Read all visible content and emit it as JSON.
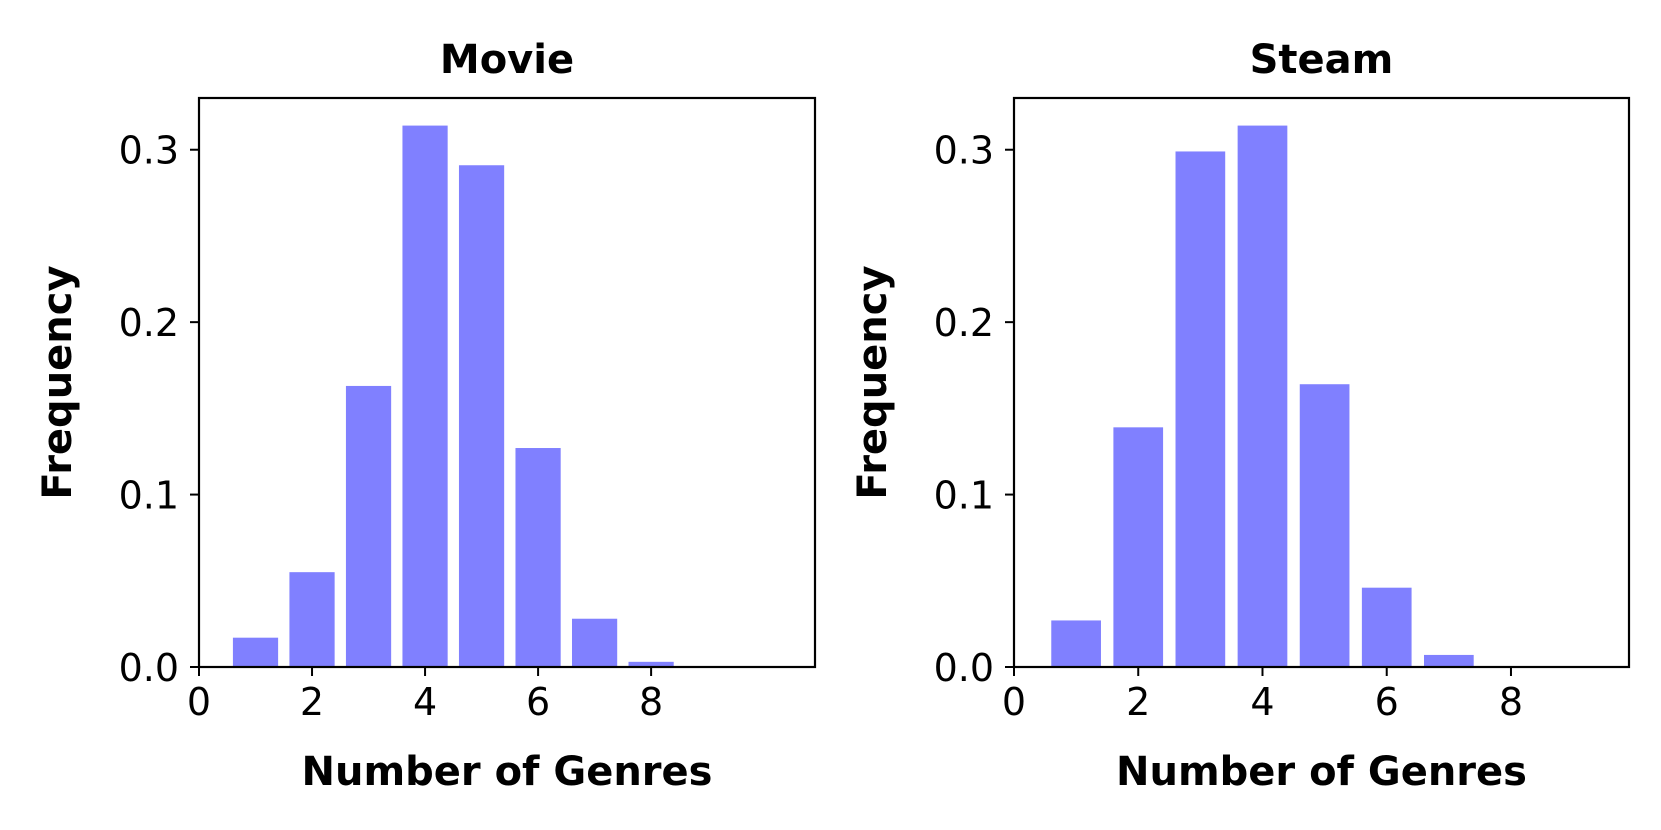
{
  "chart_data": [
    {
      "type": "bar",
      "title": "Movie",
      "xlabel": "Number of Genres",
      "ylabel": "Frequency",
      "xlim": [
        0,
        10.9
      ],
      "ylim": [
        0,
        0.33
      ],
      "xticks": [
        0,
        2,
        4,
        6,
        8
      ],
      "xtick_labels": [
        "0",
        "2",
        "4",
        "6",
        "8"
      ],
      "yticks": [
        0.0,
        0.1,
        0.2,
        0.3
      ],
      "ytick_labels": [
        "0.0",
        "0.1",
        "0.2",
        "0.3"
      ],
      "x": [
        1,
        2,
        3,
        4,
        5,
        6,
        7,
        8
      ],
      "values": [
        0.017,
        0.055,
        0.163,
        0.314,
        0.291,
        0.127,
        0.028,
        0.003
      ],
      "bar_width": 0.8,
      "color": "#8080ff",
      "grid": false
    },
    {
      "type": "bar",
      "title": "Steam",
      "xlabel": "Number of Genres",
      "ylabel": "Frequency",
      "xlim": [
        0,
        9.9
      ],
      "ylim": [
        0,
        0.33
      ],
      "xticks": [
        0,
        2,
        4,
        6,
        8
      ],
      "xtick_labels": [
        "0",
        "2",
        "4",
        "6",
        "8"
      ],
      "yticks": [
        0.0,
        0.1,
        0.2,
        0.3
      ],
      "ytick_labels": [
        "0.0",
        "0.1",
        "0.2",
        "0.3"
      ],
      "x": [
        1,
        2,
        3,
        4,
        5,
        6,
        7
      ],
      "values": [
        0.027,
        0.139,
        0.299,
        0.314,
        0.164,
        0.046,
        0.007
      ],
      "bar_width": 0.8,
      "color": "#8080ff",
      "grid": false
    }
  ]
}
